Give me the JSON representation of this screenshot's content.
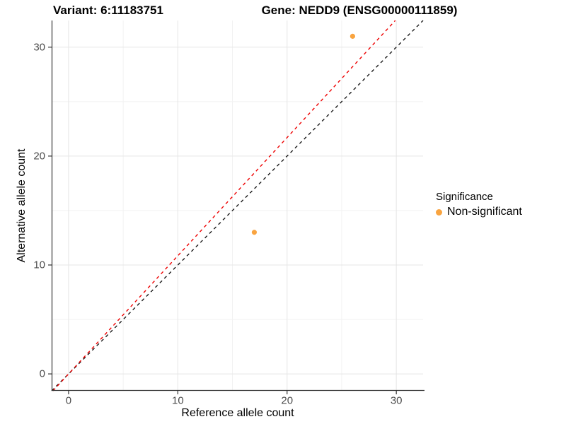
{
  "titles": {
    "variant": "Variant: 6:11183751",
    "gene": "Gene: NEDD9 (ENSG00000111859)"
  },
  "chart_data": {
    "type": "scatter",
    "title": "Variant: 6:11183751 — Gene: NEDD9 (ENSG00000111859)",
    "xlabel": "Reference allele count",
    "ylabel": "Alternative allele count",
    "xlim": [
      -1.55,
      32.45
    ],
    "ylim": [
      -1.55,
      32.45
    ],
    "x_ticks": [
      0,
      10,
      20,
      30
    ],
    "y_ticks": [
      0,
      10,
      20,
      30
    ],
    "minor_ticks": [
      5,
      15,
      25
    ],
    "grid": true,
    "series": [
      {
        "name": "Non-significant",
        "color": "#F9A440",
        "points": [
          {
            "x": 17,
            "y": 13
          },
          {
            "x": 26,
            "y": 31
          }
        ]
      }
    ],
    "reference_lines": [
      {
        "name": "identity-line",
        "slope": 1.0,
        "intercept": 0,
        "color": "#1a1a1a",
        "style": "dashed"
      },
      {
        "name": "expected-ratio-line",
        "slope": 1.085,
        "intercept": 0,
        "color": "#ee0000",
        "style": "dashed"
      }
    ],
    "legend": {
      "title": "Significance",
      "position": "right",
      "items": [
        {
          "label": "Non-significant",
          "color": "#F9A440"
        }
      ]
    }
  }
}
